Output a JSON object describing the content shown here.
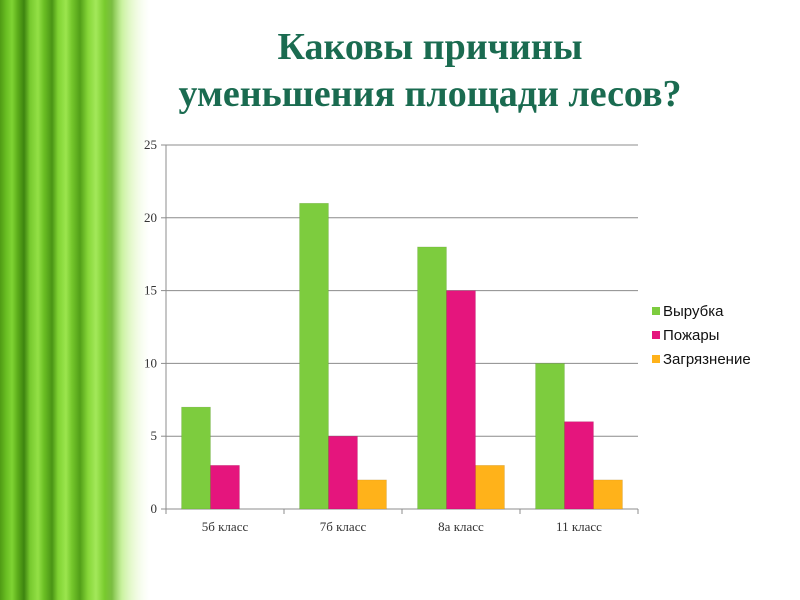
{
  "slide": {
    "title_lines": [
      "Каковы причины",
      "уменьшения площади лесов?"
    ]
  },
  "chart_data": {
    "type": "bar",
    "categories": [
      "5б класс",
      "7б класс",
      "8а класс",
      "11 класс"
    ],
    "series": [
      {
        "name": "Вырубка",
        "values": [
          7,
          21,
          18,
          10
        ],
        "color": "#7dcc3e"
      },
      {
        "name": "Пожары",
        "values": [
          3,
          5,
          15,
          6
        ],
        "color": "#e5157d"
      },
      {
        "name": "Загрязнение",
        "values": [
          0,
          2,
          3,
          2
        ],
        "color": "#ffb21a"
      }
    ],
    "yticks": [
      0,
      5,
      10,
      15,
      20,
      25
    ],
    "ylim": [
      0,
      25
    ],
    "grid": true,
    "legend_position": "right"
  }
}
